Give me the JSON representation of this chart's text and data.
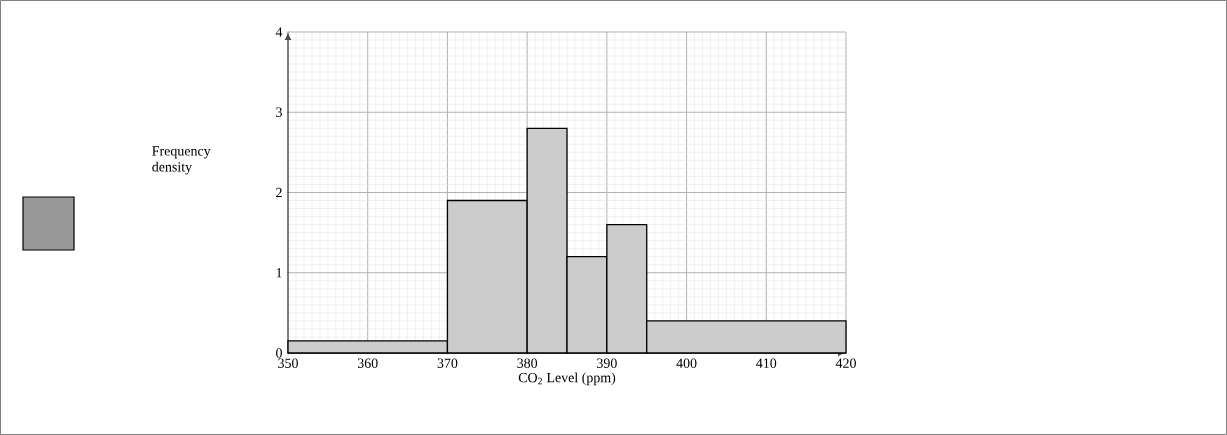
{
  "chart_data": {
    "type": "histogram",
    "xlabel": "CO$_{2}$ Level (ppm)",
    "ylabel": "Frequency density",
    "bins": [
      350,
      370,
      380,
      385,
      390,
      395,
      420
    ],
    "values": [
      0.15,
      1.9,
      2.8,
      1.2,
      1.6,
      0.4
    ],
    "color": "#cccccc",
    "xlim": [
      350,
      420
    ],
    "xticks": [
      350,
      360,
      370,
      380,
      390,
      400,
      410,
      420
    ],
    "ylim": [
      0,
      4
    ],
    "yticks": [
      0,
      1,
      2,
      3,
      4
    ],
    "grid": true,
    "legend": false
  }
}
